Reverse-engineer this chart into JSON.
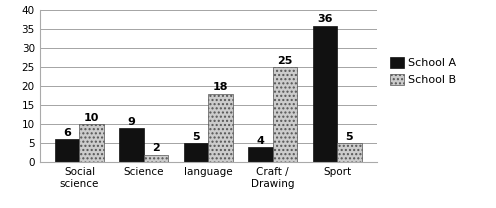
{
  "categories": [
    "Social\nscience",
    "Science",
    "language",
    "Craft /\nDrawing",
    "Sport"
  ],
  "school_a": [
    6,
    9,
    5,
    4,
    36
  ],
  "school_b": [
    10,
    2,
    18,
    25,
    5
  ],
  "bar_color_a": "#111111",
  "bar_color_b": "#cccccc",
  "bar_hatch_b": "....",
  "ylim": [
    0,
    40
  ],
  "yticks": [
    0,
    5,
    10,
    15,
    20,
    25,
    30,
    35,
    40
  ],
  "legend_a": "School A",
  "legend_b": "School B",
  "bar_width": 0.38,
  "tick_fontsize": 7.5,
  "legend_fontsize": 8,
  "value_fontsize": 8
}
